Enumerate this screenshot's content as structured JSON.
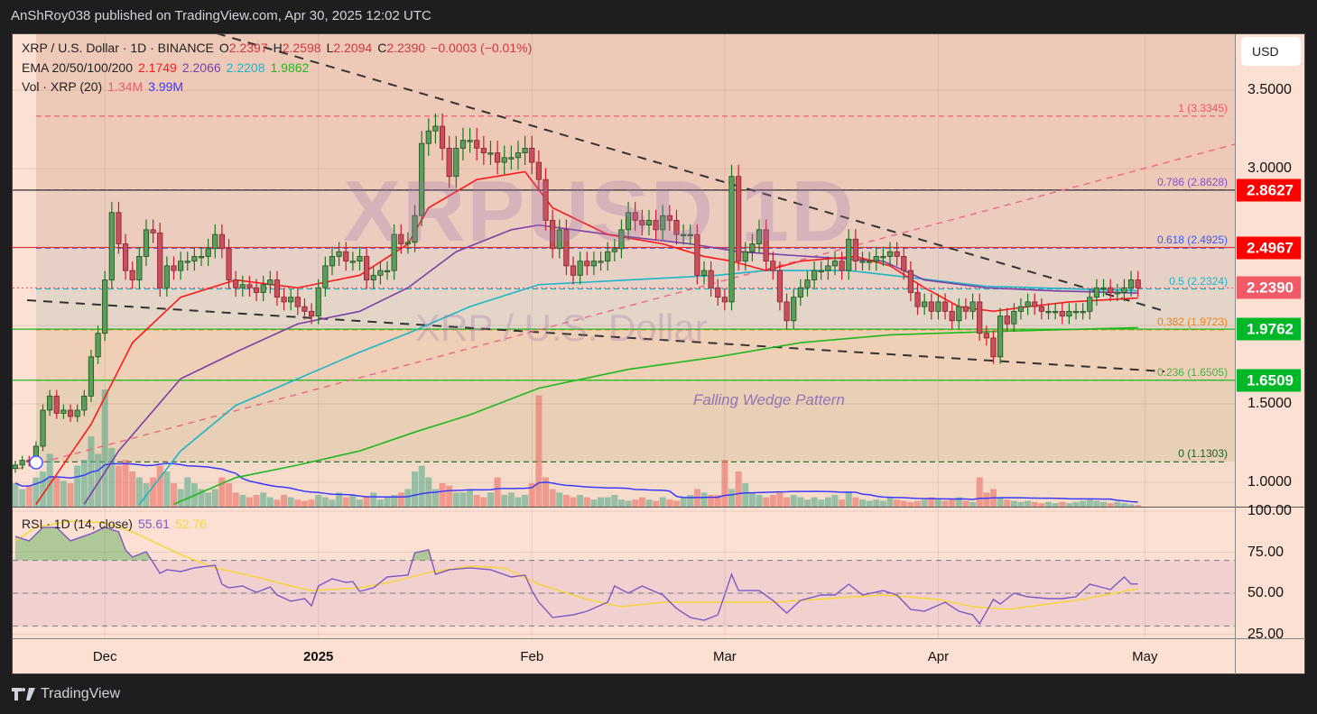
{
  "publisher_line": "AnShRoy038 published on TradingView.com, Apr 30, 2025 12:02 UTC",
  "legend": {
    "symbol": "XRP / U.S. Dollar · 1D · BINANCE",
    "o_label": "O",
    "o": "2.2397",
    "h_label": "H",
    "h": "2.2598",
    "l_label": "L",
    "l": "2.2094",
    "c_label": "C",
    "c": "2.2390",
    "change": "−0.0003 (−0.01%)",
    "ema_label": "EMA 20/50/100/200",
    "ema20": "2.1749",
    "ema50": "2.2066",
    "ema100": "2.2208",
    "ema200": "1.9862",
    "vol_label": "Vol · XRP (20)",
    "vol": "1.34M",
    "vol_ma": "3.99M",
    "rsi_label": "RSI · 1D (14, close)",
    "rsi": "55.61",
    "rsi_ma": "52.76"
  },
  "watermark": {
    "symbol": "XRPUSD 1D",
    "name": "XRP / U.S. Dollar"
  },
  "annotation": "Falling Wedge Pattern",
  "currency_button": "USD",
  "brand": "TradingView",
  "colors": {
    "up": "#5a9e5a",
    "down": "#c9505a",
    "ema20": "#ff1a1a",
    "ema50": "#7b3fa8",
    "ema100": "#1fb5c9",
    "ema200": "#1fb81f",
    "vol_ma": "#3b3bff",
    "rsi": "#7e57c2",
    "rsi_ma": "#f5d63a"
  },
  "chart_data": [
    {
      "type": "candlestick",
      "scale": "linear",
      "ylim": [
        0.85,
        3.88
      ],
      "yticks": [
        "3.5000",
        "3.0000",
        "1.5000",
        "1.0000"
      ],
      "xticks": [
        "Dec",
        "2025",
        "Feb",
        "Mar",
        "Apr",
        "May"
      ],
      "first_date": "2024-11-18",
      "close": [
        1.11,
        1.14,
        1.13,
        1.23,
        1.46,
        1.55,
        1.44,
        1.46,
        1.42,
        1.46,
        1.55,
        1.8,
        1.95,
        2.29,
        2.72,
        2.52,
        2.35,
        2.29,
        2.44,
        2.61,
        2.59,
        2.24,
        2.38,
        2.35,
        2.41,
        2.41,
        2.44,
        2.44,
        2.49,
        2.58,
        2.49,
        2.29,
        2.24,
        2.26,
        2.24,
        2.21,
        2.26,
        2.29,
        2.18,
        2.15,
        2.18,
        2.12,
        2.09,
        2.06,
        2.24,
        2.38,
        2.44,
        2.47,
        2.41,
        2.41,
        2.44,
        2.29,
        2.32,
        2.35,
        2.35,
        2.58,
        2.52,
        2.53,
        2.7,
        3.16,
        3.24,
        3.27,
        3.13,
        2.95,
        3.13,
        3.18,
        3.18,
        3.13,
        3.1,
        3.1,
        3.04,
        3.07,
        3.07,
        3.1,
        3.13,
        3.04,
        2.93,
        2.67,
        2.49,
        2.61,
        2.38,
        2.32,
        2.41,
        2.38,
        2.41,
        2.41,
        2.47,
        2.49,
        2.61,
        2.72,
        2.67,
        2.64,
        2.67,
        2.61,
        2.7,
        2.67,
        2.58,
        2.58,
        2.58,
        2.32,
        2.35,
        2.24,
        2.18,
        2.15,
        2.95,
        2.41,
        2.47,
        2.52,
        2.61,
        2.41,
        2.35,
        2.15,
        2.03,
        2.18,
        2.24,
        2.29,
        2.35,
        2.35,
        2.38,
        2.41,
        2.35,
        2.55,
        2.41,
        2.41,
        2.41,
        2.44,
        2.44,
        2.47,
        2.44,
        2.35,
        2.21,
        2.12,
        2.15,
        2.09,
        2.15,
        2.09,
        2.03,
        2.12,
        2.09,
        2.15,
        1.95,
        1.92,
        1.8,
        2.06,
        2.01,
        2.09,
        2.12,
        2.15,
        2.12,
        2.09,
        2.09,
        2.09,
        2.06,
        2.09,
        2.09,
        2.09,
        2.18,
        2.24,
        2.24,
        2.21,
        2.21,
        2.24,
        2.29,
        2.239
      ],
      "volume_m": [
        20,
        15,
        18,
        25,
        30,
        45,
        25,
        22,
        20,
        35,
        40,
        60,
        45,
        100,
        50,
        35,
        40,
        30,
        25,
        20,
        25,
        35,
        30,
        20,
        15,
        25,
        20,
        15,
        12,
        15,
        25,
        20,
        12,
        10,
        8,
        10,
        12,
        8,
        6,
        10,
        8,
        6,
        5,
        6,
        10,
        8,
        6,
        12,
        8,
        10,
        6,
        8,
        12,
        6,
        8,
        10,
        12,
        15,
        30,
        35,
        25,
        15,
        20,
        18,
        12,
        12,
        15,
        10,
        8,
        12,
        25,
        10,
        12,
        8,
        10,
        20,
        95,
        25,
        15,
        12,
        10,
        8,
        10,
        8,
        6,
        8,
        8,
        10,
        6,
        5,
        6,
        8,
        6,
        5,
        8,
        6,
        5,
        8,
        10,
        15,
        12,
        10,
        10,
        40,
        15,
        30,
        20,
        12,
        10,
        8,
        10,
        12,
        8,
        10,
        8,
        6,
        8,
        6,
        8,
        10,
        6,
        12,
        8,
        6,
        5,
        6,
        5,
        8,
        6,
        5,
        4,
        5,
        6,
        8,
        6,
        5,
        6,
        8,
        5,
        4,
        25,
        12,
        15,
        8,
        6,
        5,
        4,
        5,
        4,
        3,
        4,
        3,
        4,
        3,
        4,
        5,
        6,
        5,
        4,
        3,
        4,
        3,
        2,
        1.34
      ],
      "ema": {
        "ema20": [
          [
            "2024-11-21",
            0.86
          ],
          [
            "2024-11-29",
            1.37
          ],
          [
            "2024-12-05",
            1.89
          ],
          [
            "2024-12-12",
            2.18
          ],
          [
            "2024-12-20",
            2.29
          ],
          [
            "2024-12-29",
            2.24
          ],
          [
            "2025-01-07",
            2.32
          ],
          [
            "2025-01-14",
            2.52
          ],
          [
            "2025-01-17",
            2.75
          ],
          [
            "2025-01-24",
            2.93
          ],
          [
            "2025-01-31",
            2.98
          ],
          [
            "2025-02-04",
            2.75
          ],
          [
            "2025-02-12",
            2.58
          ],
          [
            "2025-02-20",
            2.52
          ],
          [
            "2025-02-26",
            2.44
          ],
          [
            "2025-03-02",
            2.41
          ],
          [
            "2025-03-07",
            2.35
          ],
          [
            "2025-03-12",
            2.41
          ],
          [
            "2025-03-20",
            2.44
          ],
          [
            "2025-03-25",
            2.38
          ],
          [
            "2025-03-30",
            2.24
          ],
          [
            "2025-04-04",
            2.12
          ],
          [
            "2025-04-09",
            2.09
          ],
          [
            "2025-04-14",
            2.12
          ],
          [
            "2025-04-20",
            2.15
          ],
          [
            "2025-04-30",
            2.1749
          ]
        ],
        "ema50": [
          [
            "2024-11-28",
            0.86
          ],
          [
            "2024-12-03",
            1.2
          ],
          [
            "2024-12-12",
            1.66
          ],
          [
            "2024-12-20",
            1.83
          ],
          [
            "2024-12-29",
            2.01
          ],
          [
            "2025-01-07",
            2.09
          ],
          [
            "2025-01-14",
            2.24
          ],
          [
            "2025-01-21",
            2.47
          ],
          [
            "2025-01-29",
            2.61
          ],
          [
            "2025-02-02",
            2.64
          ],
          [
            "2025-02-12",
            2.58
          ],
          [
            "2025-02-24",
            2.52
          ],
          [
            "2025-03-03",
            2.47
          ],
          [
            "2025-03-13",
            2.44
          ],
          [
            "2025-03-24",
            2.41
          ],
          [
            "2025-03-30",
            2.29
          ],
          [
            "2025-04-08",
            2.24
          ],
          [
            "2025-04-18",
            2.22
          ],
          [
            "2025-04-30",
            2.2066
          ]
        ],
        "ema100": [
          [
            "2024-12-06",
            0.86
          ],
          [
            "2024-12-12",
            1.2
          ],
          [
            "2024-12-20",
            1.49
          ],
          [
            "2024-12-29",
            1.66
          ],
          [
            "2025-01-07",
            1.83
          ],
          [
            "2025-01-14",
            1.95
          ],
          [
            "2025-01-23",
            2.12
          ],
          [
            "2025-02-02",
            2.26
          ],
          [
            "2025-02-15",
            2.29
          ],
          [
            "2025-02-28",
            2.32
          ],
          [
            "2025-03-07",
            2.35
          ],
          [
            "2025-03-19",
            2.35
          ],
          [
            "2025-03-25",
            2.32
          ],
          [
            "2025-04-08",
            2.25
          ],
          [
            "2025-04-30",
            2.2208
          ]
        ],
        "ema200": [
          [
            "2024-12-11",
            0.86
          ],
          [
            "2024-12-20",
            1.03
          ],
          [
            "2024-12-29",
            1.11
          ],
          [
            "2025-01-07",
            1.2
          ],
          [
            "2025-01-15",
            1.32
          ],
          [
            "2025-01-23",
            1.43
          ],
          [
            "2025-02-02",
            1.6
          ],
          [
            "2025-02-15",
            1.72
          ],
          [
            "2025-02-28",
            1.8
          ],
          [
            "2025-03-12",
            1.89
          ],
          [
            "2025-03-25",
            1.94
          ],
          [
            "2025-04-08",
            1.96
          ],
          [
            "2025-04-30",
            1.9862
          ]
        ]
      },
      "fib_levels": [
        {
          "ratio": "1",
          "price": 3.3345,
          "label": "1 (3.3345)",
          "color": "#f0506e",
          "band": "#efc9b8"
        },
        {
          "ratio": "0.786",
          "price": 2.8628,
          "label": "0.786 (2.8628)",
          "color": "#8a4fc7",
          "band": "#ebccbf"
        },
        {
          "ratio": "0.618",
          "price": 2.4925,
          "label": "0.618 (2.4925)",
          "color": "#3a5bf0",
          "band": "#e7d0c6"
        },
        {
          "ratio": "0.5",
          "price": 2.2324,
          "label": "0.5 (2.2324)",
          "color": "#22b5c9",
          "band": "#e3d6c8"
        },
        {
          "ratio": "0.382",
          "price": 1.9723,
          "label": "0.382 (1.9723)",
          "color": "#f08020",
          "band": "#efcfb6"
        },
        {
          "ratio": "0.236",
          "price": 1.6505,
          "label": "0.236 (1.6505)",
          "color": "#4caf50",
          "band": "#e8d0b6"
        },
        {
          "ratio": "0",
          "price": 1.1303,
          "label": "0 (1.1303)",
          "color": "#1b5e20",
          "band": null
        }
      ],
      "price_lines": [
        {
          "price": 2.8627,
          "label": "2.8627",
          "color": "#ff0000",
          "line": "#333333"
        },
        {
          "price": 2.4967,
          "label": "2.4967",
          "color": "#ff0000",
          "line": "#e03030"
        },
        {
          "price": 2.239,
          "label": "2.2390",
          "color": "#f05a66",
          "line": "#f05a66"
        },
        {
          "price": 1.9762,
          "label": "1.9762",
          "color": "#00b827",
          "line": "#22bb22"
        },
        {
          "price": 1.6509,
          "label": "1.6509",
          "color": "#00b827",
          "line": "#22bb22"
        }
      ]
    },
    {
      "type": "line",
      "title": "RSI · 1D (14, close)",
      "ylim": [
        20,
        100
      ],
      "yticks": [
        "100.00",
        "75.00",
        "50.00",
        "25.00"
      ],
      "bands": [
        30,
        50,
        70
      ],
      "rsi": [
        [
          "2024-11-18",
          84.6
        ],
        [
          "2024-11-20",
          81.9
        ],
        [
          "2024-11-22",
          90.1
        ],
        [
          "2024-11-24",
          90.1
        ],
        [
          "2024-11-26",
          81.9
        ],
        [
          "2024-11-29",
          86.3
        ],
        [
          "2024-12-01",
          90.1
        ],
        [
          "2024-12-03",
          87.4
        ],
        [
          "2024-12-04",
          76.4
        ],
        [
          "2024-12-05",
          72
        ],
        [
          "2024-12-07",
          75.3
        ],
        [
          "2024-12-09",
          62.1
        ],
        [
          "2024-12-10",
          64.3
        ],
        [
          "2024-12-12",
          63.2
        ],
        [
          "2024-12-14",
          65.4
        ],
        [
          "2024-12-17",
          67
        ],
        [
          "2024-12-18",
          55.5
        ],
        [
          "2024-12-19",
          53.3
        ],
        [
          "2024-12-21",
          54.4
        ],
        [
          "2024-12-23",
          50.5
        ],
        [
          "2024-12-25",
          53.8
        ],
        [
          "2024-12-26",
          48.9
        ],
        [
          "2024-12-28",
          45.1
        ],
        [
          "2024-12-30",
          46.7
        ],
        [
          "2024-12-31",
          42.3
        ],
        [
          "2025-01-01",
          54.4
        ],
        [
          "2025-01-03",
          58.8
        ],
        [
          "2025-01-05",
          56.6
        ],
        [
          "2025-01-06",
          57.1
        ],
        [
          "2025-01-07",
          51.1
        ],
        [
          "2025-01-09",
          53.3
        ],
        [
          "2025-01-11",
          59.9
        ],
        [
          "2025-01-14",
          61
        ],
        [
          "2025-01-15",
          74.7
        ],
        [
          "2025-01-17",
          76.4
        ],
        [
          "2025-01-18",
          61.5
        ],
        [
          "2025-01-20",
          64.3
        ],
        [
          "2025-01-23",
          65.4
        ],
        [
          "2025-01-26",
          64.3
        ],
        [
          "2025-01-29",
          59.9
        ],
        [
          "2025-01-31",
          61
        ],
        [
          "2025-02-01",
          51.6
        ],
        [
          "2025-02-02",
          44.5
        ],
        [
          "2025-02-04",
          35.2
        ],
        [
          "2025-02-07",
          36.8
        ],
        [
          "2025-02-09",
          39
        ],
        [
          "2025-02-12",
          44.5
        ],
        [
          "2025-02-13",
          54.4
        ],
        [
          "2025-02-15",
          50
        ],
        [
          "2025-02-17",
          54.4
        ],
        [
          "2025-02-20",
          48.9
        ],
        [
          "2025-02-22",
          40.7
        ],
        [
          "2025-02-24",
          35.2
        ],
        [
          "2025-02-26",
          33.5
        ],
        [
          "2025-02-28",
          36.8
        ],
        [
          "2025-03-02",
          61.5
        ],
        [
          "2025-03-03",
          51.6
        ],
        [
          "2025-03-06",
          51.6
        ],
        [
          "2025-03-08",
          45.6
        ],
        [
          "2025-03-10",
          37.9
        ],
        [
          "2025-03-12",
          45.6
        ],
        [
          "2025-03-15",
          48.9
        ],
        [
          "2025-03-17",
          48.9
        ],
        [
          "2025-03-19",
          55.5
        ],
        [
          "2025-03-21",
          48.9
        ],
        [
          "2025-03-24",
          51.6
        ],
        [
          "2025-03-26",
          48.9
        ],
        [
          "2025-03-28",
          40.1
        ],
        [
          "2025-03-30",
          39
        ],
        [
          "2025-04-02",
          44.5
        ],
        [
          "2025-04-04",
          39
        ],
        [
          "2025-04-06",
          36.8
        ],
        [
          "2025-04-07",
          31.3
        ],
        [
          "2025-04-09",
          46.2
        ],
        [
          "2025-04-10",
          43.4
        ],
        [
          "2025-04-12",
          50
        ],
        [
          "2025-04-14",
          47.8
        ],
        [
          "2025-04-17",
          46.7
        ],
        [
          "2025-04-19",
          46.7
        ],
        [
          "2025-04-21",
          47.8
        ],
        [
          "2025-04-23",
          55.5
        ],
        [
          "2025-04-24",
          54.4
        ],
        [
          "2025-04-26",
          52.2
        ],
        [
          "2025-04-28",
          59.9
        ],
        [
          "2025-04-29",
          55.6
        ],
        [
          "2025-04-30",
          55.61
        ]
      ],
      "rsi_ma": [
        [
          "2024-11-18",
          81.9
        ],
        [
          "2024-11-21",
          90.1
        ],
        [
          "2024-11-26",
          94
        ],
        [
          "2024-12-01",
          92.9
        ],
        [
          "2024-12-05",
          87.4
        ],
        [
          "2024-12-12",
          73.6
        ],
        [
          "2024-12-17",
          65.4
        ],
        [
          "2024-12-23",
          59.9
        ],
        [
          "2024-12-28",
          54.4
        ],
        [
          "2024-12-31",
          51.6
        ],
        [
          "2025-01-07",
          53.3
        ],
        [
          "2025-01-12",
          57.1
        ],
        [
          "2025-01-17",
          62.6
        ],
        [
          "2025-01-23",
          66.5
        ],
        [
          "2025-01-28",
          65.4
        ],
        [
          "2025-02-02",
          55.5
        ],
        [
          "2025-02-09",
          46.2
        ],
        [
          "2025-02-14",
          41.8
        ],
        [
          "2025-02-20",
          44.5
        ],
        [
          "2025-02-28",
          44.5
        ],
        [
          "2025-03-08",
          44.5
        ],
        [
          "2025-03-16",
          46.7
        ],
        [
          "2025-03-24",
          48.9
        ],
        [
          "2025-04-01",
          46.2
        ],
        [
          "2025-04-06",
          41.8
        ],
        [
          "2025-04-11",
          40.1
        ],
        [
          "2025-04-17",
          43.4
        ],
        [
          "2025-04-22",
          46.2
        ],
        [
          "2025-04-30",
          52.76
        ]
      ]
    }
  ]
}
